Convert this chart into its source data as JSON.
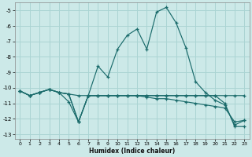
{
  "xlabel": "Humidex (Indice chaleur)",
  "xlim": [
    -0.5,
    23.5
  ],
  "ylim": [
    -13.3,
    -4.5
  ],
  "background_color": "#cce9e8",
  "grid_color": "#aad4d3",
  "line_color": "#1a6b6b",
  "xticks": [
    0,
    1,
    2,
    3,
    4,
    5,
    6,
    7,
    8,
    9,
    10,
    11,
    12,
    13,
    14,
    15,
    16,
    17,
    18,
    19,
    20,
    21,
    22,
    23
  ],
  "yticks": [
    -5,
    -6,
    -7,
    -8,
    -9,
    -10,
    -11,
    -12,
    -13
  ],
  "series": [
    {
      "x": [
        0,
        1,
        2,
        3,
        4,
        5,
        6,
        7,
        8,
        9,
        10,
        11,
        12,
        13,
        14,
        15,
        16,
        17,
        18,
        19,
        20,
        21,
        22,
        23
      ],
      "y": [
        -10.2,
        -10.5,
        -10.3,
        -10.1,
        -10.3,
        -10.4,
        -12.2,
        -10.5,
        -8.6,
        -9.3,
        -7.5,
        -6.6,
        -6.2,
        -7.5,
        -5.1,
        -4.8,
        -5.8,
        -7.4,
        -9.6,
        -10.3,
        -10.8,
        -11.1,
        -12.4,
        -12.1
      ]
    },
    {
      "x": [
        0,
        1,
        2,
        3,
        4,
        5,
        6,
        7,
        8,
        9,
        10,
        11,
        12,
        13,
        14,
        15,
        16,
        17,
        18,
        19,
        20,
        21,
        22,
        23
      ],
      "y": [
        -10.2,
        -10.5,
        -10.3,
        -10.1,
        -10.3,
        -10.4,
        -10.5,
        -10.5,
        -10.5,
        -10.5,
        -10.5,
        -10.5,
        -10.5,
        -10.5,
        -10.5,
        -10.5,
        -10.5,
        -10.5,
        -10.5,
        -10.5,
        -10.5,
        -10.5,
        -10.5,
        -10.5
      ]
    },
    {
      "x": [
        0,
        1,
        2,
        3,
        4,
        5,
        6,
        7,
        8,
        9,
        10,
        11,
        12,
        13,
        14,
        15,
        16,
        17,
        18,
        19,
        20,
        21,
        22,
        23
      ],
      "y": [
        -10.2,
        -10.5,
        -10.3,
        -10.1,
        -10.3,
        -10.4,
        -12.2,
        -10.5,
        -10.5,
        -10.5,
        -10.5,
        -10.5,
        -10.5,
        -10.6,
        -10.7,
        -10.7,
        -10.8,
        -10.9,
        -11.0,
        -11.1,
        -11.2,
        -11.3,
        -12.2,
        -12.1
      ]
    },
    {
      "x": [
        0,
        1,
        2,
        3,
        4,
        5,
        6,
        7,
        8,
        9,
        10,
        11,
        12,
        13,
        14,
        15,
        16,
        17,
        18,
        19,
        20,
        21,
        22,
        23
      ],
      "y": [
        -10.2,
        -10.5,
        -10.3,
        -10.1,
        -10.3,
        -10.9,
        -12.2,
        -10.5,
        -10.5,
        -10.5,
        -10.5,
        -10.5,
        -10.5,
        -10.5,
        -10.5,
        -10.5,
        -10.5,
        -10.5,
        -10.5,
        -10.5,
        -10.5,
        -11.0,
        -12.5,
        -12.5
      ]
    }
  ]
}
